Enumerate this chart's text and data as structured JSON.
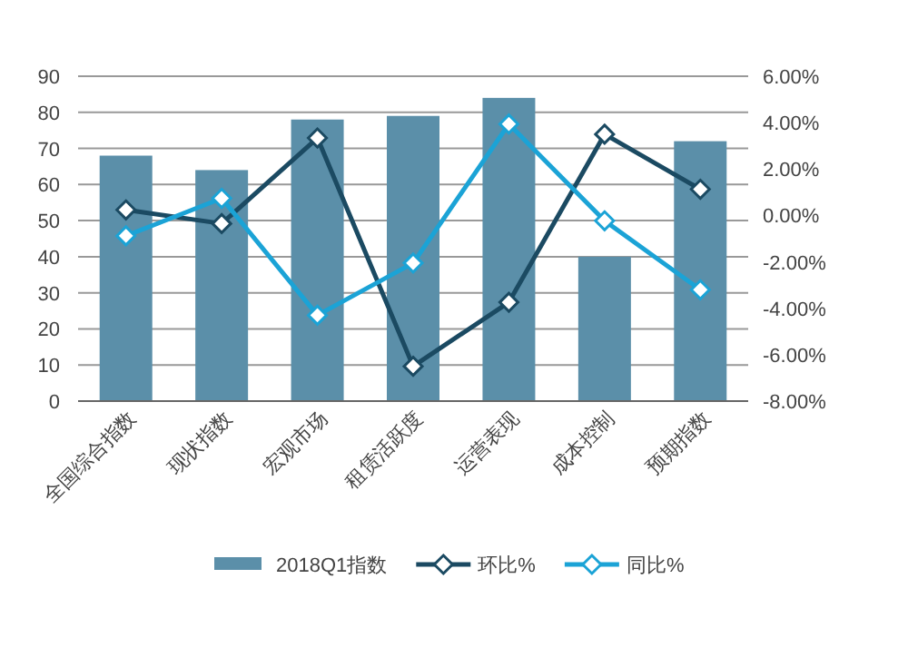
{
  "chart_data": {
    "type": "bar",
    "categories": [
      "全国综合指数",
      "现状指数",
      "宏观市场",
      "租赁活跃度",
      "运营表现",
      "成本控制",
      "预期指数"
    ],
    "series": [
      {
        "name": "2018Q1指数",
        "color": "#5b8fa9",
        "values": [
          68,
          64,
          78,
          79,
          84,
          40,
          72
        ]
      },
      {
        "name": "环比%",
        "type": "line",
        "axis": "y2",
        "color": "#1b4a62",
        "marker": "diamond",
        "values": [
          0.24,
          -0.35,
          3.34,
          -6.5,
          -3.74,
          3.5,
          1.13
        ]
      },
      {
        "name": "同比%",
        "type": "line",
        "axis": "y2",
        "color": "#1ba3d6",
        "marker": "diamond",
        "values": [
          -0.88,
          0.74,
          -4.3,
          -2.05,
          3.94,
          -0.23,
          -3.2
        ]
      }
    ],
    "ylim": [
      0,
      90
    ],
    "yticks": [
      0,
      10,
      20,
      30,
      40,
      50,
      60,
      70,
      80,
      90
    ],
    "y2lim": [
      -8,
      6
    ],
    "y2ticks": [
      {
        "value": -8,
        "label": "-8.00%"
      },
      {
        "value": -6,
        "label": "-6.00%"
      },
      {
        "value": -4,
        "label": "-4.00%"
      },
      {
        "value": -2,
        "label": "-2.00%"
      },
      {
        "value": 0,
        "label": "0.00%"
      },
      {
        "value": 2,
        "label": "2.00%"
      },
      {
        "value": 4,
        "label": "4.00%"
      },
      {
        "value": 6,
        "label": "6.00%"
      }
    ],
    "grid": "y",
    "legend": "bottom"
  }
}
